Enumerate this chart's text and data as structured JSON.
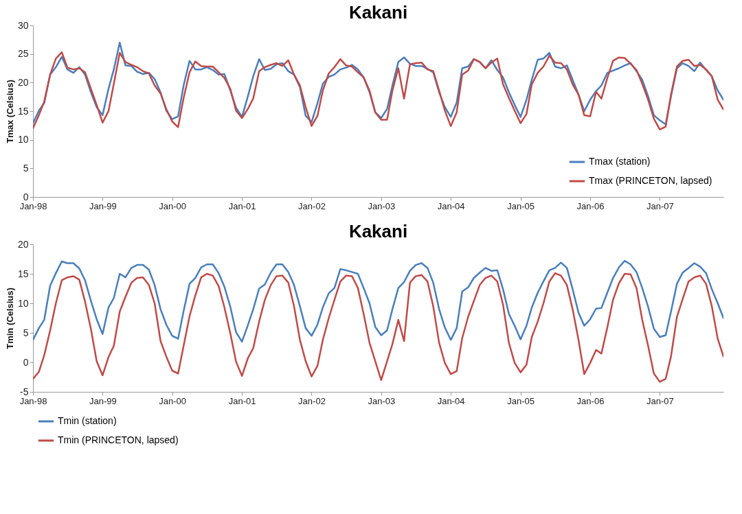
{
  "chart_data": [
    {
      "type": "line",
      "title": "Kakani",
      "ylabel": "Tmax (Celsius)",
      "x": [
        "1998-01",
        "1998-02",
        "1998-03",
        "1998-04",
        "1998-05",
        "1998-06",
        "1998-07",
        "1998-08",
        "1998-09",
        "1998-10",
        "1998-11",
        "1998-12",
        "1999-01",
        "1999-02",
        "1999-03",
        "1999-04",
        "1999-05",
        "1999-06",
        "1999-07",
        "1999-08",
        "1999-09",
        "1999-10",
        "1999-11",
        "1999-12",
        "2000-01",
        "2000-02",
        "2000-03",
        "2000-04",
        "2000-05",
        "2000-06",
        "2000-07",
        "2000-08",
        "2000-09",
        "2000-10",
        "2000-11",
        "2000-12",
        "2001-01",
        "2001-02",
        "2001-03",
        "2001-04",
        "2001-05",
        "2001-06",
        "2001-07",
        "2001-08",
        "2001-09",
        "2001-10",
        "2001-11",
        "2001-12",
        "2002-01",
        "2002-02",
        "2002-03",
        "2002-04",
        "2002-05",
        "2002-06",
        "2002-07",
        "2002-08",
        "2002-09",
        "2002-10",
        "2002-11",
        "2002-12",
        "2003-01",
        "2003-02",
        "2003-03",
        "2003-04",
        "2003-05",
        "2003-06",
        "2003-07",
        "2003-08",
        "2003-09",
        "2003-10",
        "2003-11",
        "2003-12",
        "2004-01",
        "2004-02",
        "2004-03",
        "2004-04",
        "2004-05",
        "2004-06",
        "2004-07",
        "2004-08",
        "2004-09",
        "2004-10",
        "2004-11",
        "2004-12",
        "2005-01",
        "2005-02",
        "2005-03",
        "2005-04",
        "2005-05",
        "2005-06",
        "2005-07",
        "2005-08",
        "2005-09",
        "2005-10",
        "2005-11",
        "2005-12",
        "2006-01",
        "2006-02",
        "2006-03",
        "2006-04",
        "2006-05",
        "2006-06",
        "2006-07",
        "2006-08",
        "2006-09",
        "2006-10",
        "2006-11",
        "2006-12",
        "2007-01",
        "2007-02",
        "2007-03",
        "2007-04",
        "2007-05",
        "2007-06",
        "2007-07",
        "2007-08",
        "2007-09",
        "2007-10",
        "2007-11",
        "2007-12"
      ],
      "series": [
        {
          "name": "Tmax (station)",
          "color": "#4a7ebb",
          "values": [
            12.9,
            15.1,
            16.4,
            21.4,
            22.7,
            24.5,
            22.3,
            21.7,
            22.7,
            21.4,
            18.3,
            15.7,
            14.3,
            18.9,
            22.3,
            27.0,
            23.0,
            22.9,
            21.9,
            21.5,
            21.7,
            20.6,
            18.3,
            15.1,
            13.6,
            14.1,
            19.5,
            23.8,
            22.3,
            22.3,
            22.7,
            22.2,
            21.4,
            21.5,
            18.6,
            15.6,
            14.0,
            17.6,
            21.1,
            24.1,
            22.2,
            22.4,
            23.2,
            23.4,
            22.0,
            21.4,
            19.2,
            14.2,
            13.1,
            16.4,
            19.8,
            21.0,
            21.4,
            22.3,
            22.6,
            23.1,
            22.3,
            20.9,
            18.3,
            14.8,
            13.8,
            15.4,
            19.5,
            23.6,
            24.4,
            23.3,
            22.9,
            22.9,
            22.4,
            21.8,
            18.3,
            15.7,
            14.0,
            16.5,
            22.5,
            22.8,
            24.1,
            23.6,
            22.5,
            23.9,
            22.2,
            20.9,
            18.3,
            16.1,
            14.0,
            17.0,
            20.5,
            24.0,
            24.2,
            25.2,
            22.8,
            22.5,
            23.0,
            20.5,
            17.9,
            15.0,
            17.0,
            18.5,
            19.5,
            21.7,
            22.1,
            22.5,
            23.0,
            23.4,
            22.0,
            20.5,
            17.6,
            14.3,
            13.4,
            12.7,
            17.6,
            22.5,
            23.4,
            22.9,
            22.0,
            23.5,
            22.2,
            21.1,
            18.6,
            17.0
          ]
        },
        {
          "name": "Tmax (PRINCETON, lapsed)",
          "color": "#be4b48",
          "values": [
            12.0,
            14.3,
            16.7,
            21.4,
            24.2,
            25.3,
            22.6,
            22.3,
            22.5,
            21.8,
            18.9,
            16.1,
            13.0,
            15.0,
            19.8,
            25.2,
            23.6,
            23.1,
            22.7,
            22.0,
            21.6,
            19.5,
            18.1,
            15.4,
            13.2,
            12.2,
            17.3,
            21.8,
            23.7,
            22.9,
            22.8,
            22.8,
            21.8,
            20.8,
            18.9,
            15.1,
            13.8,
            15.4,
            17.2,
            22.0,
            22.7,
            23.1,
            23.4,
            22.9,
            23.9,
            21.4,
            19.5,
            15.7,
            12.4,
            14.2,
            18.6,
            21.6,
            22.7,
            24.1,
            23.0,
            22.8,
            21.8,
            20.9,
            18.6,
            14.8,
            13.5,
            13.5,
            18.6,
            22.5,
            17.2,
            23.2,
            23.4,
            23.5,
            22.3,
            22.0,
            18.6,
            15.1,
            12.4,
            14.8,
            21.4,
            22.1,
            24.1,
            23.6,
            22.5,
            23.5,
            24.2,
            19.7,
            17.3,
            15.1,
            12.9,
            14.5,
            19.7,
            21.7,
            22.8,
            24.7,
            23.5,
            23.4,
            22.3,
            19.7,
            17.9,
            14.3,
            14.1,
            18.4,
            17.2,
            20.8,
            23.8,
            24.4,
            24.3,
            23.3,
            22.2,
            19.8,
            17.0,
            13.7,
            11.8,
            12.3,
            17.9,
            22.8,
            23.8,
            24.0,
            22.9,
            23.1,
            22.3,
            21.1,
            17.0,
            15.3
          ]
        }
      ],
      "ylim": [
        0,
        30
      ],
      "yticks": [
        0,
        5,
        10,
        15,
        20,
        25,
        30
      ],
      "xlim": [
        "1998-01",
        "2007-12"
      ],
      "xticks": [
        {
          "value": "1998-01",
          "label": "Jan-98"
        },
        {
          "value": "1999-01",
          "label": "Jan-99"
        },
        {
          "value": "2000-01",
          "label": "Jan-00"
        },
        {
          "value": "2001-01",
          "label": "Jan-01"
        },
        {
          "value": "2002-01",
          "label": "Jan-02"
        },
        {
          "value": "2003-01",
          "label": "Jan-03"
        },
        {
          "value": "2004-01",
          "label": "Jan-04"
        },
        {
          "value": "2005-01",
          "label": "Jan-05"
        },
        {
          "value": "2006-01",
          "label": "Jan-06"
        },
        {
          "value": "2007-01",
          "label": "Jan-07"
        }
      ],
      "legend": "bottom right",
      "line_style": "solid"
    },
    {
      "type": "line",
      "title": "Kakani",
      "ylabel": "Tmin (Celsius)",
      "x": [
        "1998-01",
        "1998-02",
        "1998-03",
        "1998-04",
        "1998-05",
        "1998-06",
        "1998-07",
        "1998-08",
        "1998-09",
        "1998-10",
        "1998-11",
        "1998-12",
        "1999-01",
        "1999-02",
        "1999-03",
        "1999-04",
        "1999-05",
        "1999-06",
        "1999-07",
        "1999-08",
        "1999-09",
        "1999-10",
        "1999-11",
        "1999-12",
        "2000-01",
        "2000-02",
        "2000-03",
        "2000-04",
        "2000-05",
        "2000-06",
        "2000-07",
        "2000-08",
        "2000-09",
        "2000-10",
        "2000-11",
        "2000-12",
        "2001-01",
        "2001-02",
        "2001-03",
        "2001-04",
        "2001-05",
        "2001-06",
        "2001-07",
        "2001-08",
        "2001-09",
        "2001-10",
        "2001-11",
        "2001-12",
        "2002-01",
        "2002-02",
        "2002-03",
        "2002-04",
        "2002-05",
        "2002-06",
        "2002-07",
        "2002-08",
        "2002-09",
        "2002-10",
        "2002-11",
        "2002-12",
        "2003-01",
        "2003-02",
        "2003-03",
        "2003-04",
        "2003-05",
        "2003-06",
        "2003-07",
        "2003-08",
        "2003-09",
        "2003-10",
        "2003-11",
        "2003-12",
        "2004-01",
        "2004-02",
        "2004-03",
        "2004-04",
        "2004-05",
        "2004-06",
        "2004-07",
        "2004-08",
        "2004-09",
        "2004-10",
        "2004-11",
        "2004-12",
        "2005-01",
        "2005-02",
        "2005-03",
        "2005-04",
        "2005-05",
        "2005-06",
        "2005-07",
        "2005-08",
        "2005-09",
        "2005-10",
        "2005-11",
        "2005-12",
        "2006-01",
        "2006-02",
        "2006-03",
        "2006-04",
        "2006-05",
        "2006-06",
        "2006-07",
        "2006-08",
        "2006-09",
        "2006-10",
        "2006-11",
        "2006-12",
        "2007-01",
        "2007-02",
        "2007-03",
        "2007-04",
        "2007-05",
        "2007-06",
        "2007-07",
        "2007-08",
        "2007-09",
        "2007-10",
        "2007-11",
        "2007-12"
      ],
      "series": [
        {
          "name": "Tmin (station)",
          "color": "#4a7ebb",
          "values": [
            3.8,
            5.8,
            7.2,
            13.0,
            15.1,
            17.1,
            16.8,
            16.8,
            15.9,
            13.9,
            10.4,
            7.3,
            4.8,
            9.3,
            10.9,
            15.0,
            14.4,
            16.0,
            16.5,
            16.5,
            15.7,
            13.1,
            9.0,
            6.4,
            4.5,
            4.0,
            8.7,
            13.3,
            14.3,
            16.1,
            16.6,
            16.6,
            15.1,
            12.8,
            9.4,
            5.1,
            3.5,
            6.3,
            9.0,
            12.5,
            13.2,
            15.2,
            16.6,
            16.6,
            15.3,
            13.1,
            9.5,
            5.8,
            4.5,
            6.4,
            9.3,
            11.7,
            12.6,
            15.8,
            15.6,
            15.3,
            15.0,
            12.6,
            10.0,
            6.0,
            4.6,
            5.4,
            9.0,
            12.6,
            13.6,
            15.5,
            16.5,
            16.8,
            16.0,
            13.5,
            9.0,
            5.9,
            3.8,
            5.8,
            12.0,
            12.7,
            14.3,
            15.2,
            16.0,
            15.5,
            15.6,
            12.4,
            8.2,
            6.2,
            3.9,
            6.2,
            9.3,
            11.8,
            13.7,
            15.6,
            16.0,
            16.9,
            16.0,
            12.4,
            8.4,
            6.2,
            7.3,
            9.1,
            9.2,
            11.8,
            14.3,
            16.1,
            17.2,
            16.6,
            15.3,
            12.6,
            9.4,
            5.7,
            4.3,
            4.6,
            8.6,
            13.3,
            15.2,
            16.0,
            16.8,
            16.2,
            15.1,
            12.4,
            10.0,
            7.5
          ]
        },
        {
          "name": "Tmin (PRINCETON, lapsed)",
          "color": "#be4b48",
          "values": [
            -2.8,
            -1.6,
            1.2,
            5.4,
            10.0,
            13.9,
            14.4,
            14.6,
            14.0,
            10.3,
            5.6,
            0.2,
            -2.2,
            0.9,
            2.8,
            8.6,
            11.1,
            13.5,
            14.3,
            14.4,
            13.1,
            10.0,
            3.6,
            1.0,
            -1.4,
            -1.9,
            2.8,
            7.8,
            11.3,
            14.4,
            15.0,
            14.7,
            12.9,
            9.3,
            4.9,
            0.1,
            -2.3,
            0.7,
            2.4,
            6.9,
            10.6,
            13.1,
            14.6,
            14.7,
            13.5,
            9.5,
            3.8,
            0.2,
            -2.4,
            -0.6,
            3.8,
            7.5,
            10.6,
            13.7,
            14.7,
            14.6,
            12.6,
            8.2,
            3.3,
            0.2,
            -3.0,
            0.2,
            3.1,
            7.2,
            3.6,
            13.5,
            14.6,
            14.8,
            13.7,
            9.5,
            3.3,
            -0.1,
            -2.0,
            -1.5,
            4.1,
            7.7,
            10.4,
            13.1,
            14.3,
            14.7,
            13.7,
            9.8,
            3.3,
            -0.1,
            -1.7,
            -0.4,
            4.3,
            6.9,
            10.0,
            13.7,
            15.1,
            14.7,
            13.1,
            9.0,
            3.8,
            -2.0,
            -0.1,
            2.1,
            1.5,
            5.9,
            10.6,
            13.4,
            15.0,
            14.9,
            12.6,
            7.2,
            2.8,
            -1.9,
            -3.3,
            -2.8,
            1.0,
            7.7,
            10.7,
            13.7,
            14.4,
            14.7,
            13.3,
            9.5,
            4.0,
            1.0
          ]
        }
      ],
      "ylim": [
        -5,
        20
      ],
      "yticks": [
        -5,
        0,
        5,
        10,
        15,
        20
      ],
      "xlim": [
        "1998-01",
        "2007-12"
      ],
      "xticks": [
        {
          "value": "1998-01",
          "label": "Jan-98"
        },
        {
          "value": "1999-01",
          "label": "Jan-99"
        },
        {
          "value": "2000-01",
          "label": "Jan-00"
        },
        {
          "value": "2001-01",
          "label": "Jan-01"
        },
        {
          "value": "2002-01",
          "label": "Jan-02"
        },
        {
          "value": "2003-01",
          "label": "Jan-03"
        },
        {
          "value": "2004-01",
          "label": "Jan-04"
        },
        {
          "value": "2005-01",
          "label": "Jan-05"
        },
        {
          "value": "2006-01",
          "label": "Jan-06"
        },
        {
          "value": "2007-01",
          "label": "Jan-07"
        }
      ],
      "legend": "bottom",
      "line_style": "solid"
    }
  ]
}
